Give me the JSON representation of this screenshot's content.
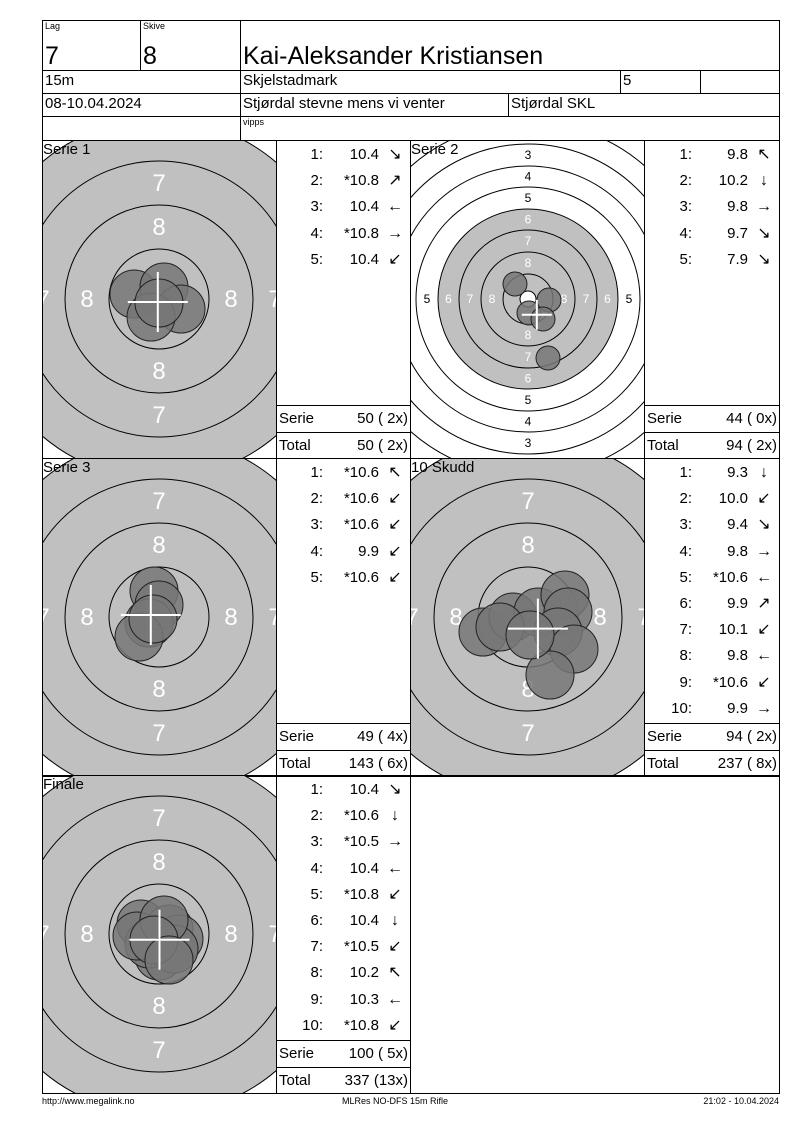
{
  "header": {
    "lag_label": "Lag",
    "lag": "7",
    "skive_label": "Skive",
    "skive": "8",
    "name": "Kai-Aleksander Kristiansen",
    "distance": "15m",
    "club_short": "Skjelstadmark",
    "class": "5",
    "extra": "",
    "date": "08-10.04.2024",
    "event": "Stjørdal stevne mens vi venter",
    "organizer": "Stjørdal SKL",
    "note": "vipps"
  },
  "panels": [
    {
      "title": "Serie 1",
      "zoom": "full",
      "serie": "50 ( 2x)",
      "total": "50 ( 2x)",
      "shots": [
        {
          "n": "1:",
          "v": "10.4",
          "dir": "se"
        },
        {
          "n": "2:",
          "v": "*10.8",
          "dir": "ne"
        },
        {
          "n": "3:",
          "v": "10.4",
          "dir": "w"
        },
        {
          "n": "4:",
          "v": "*10.8",
          "dir": "e"
        },
        {
          "n": "5:",
          "v": "10.4",
          "dir": "sw"
        }
      ]
    },
    {
      "title": "Serie 2",
      "zoom": "wide",
      "serie": "44 ( 0x)",
      "total": "94 ( 2x)",
      "shots": [
        {
          "n": "1:",
          "v": "9.8",
          "dir": "nw"
        },
        {
          "n": "2:",
          "v": "10.2",
          "dir": "s"
        },
        {
          "n": "3:",
          "v": "9.8",
          "dir": "e"
        },
        {
          "n": "4:",
          "v": "9.7",
          "dir": "se"
        },
        {
          "n": "5:",
          "v": "7.9",
          "dir": "se"
        }
      ]
    },
    {
      "title": "Serie 3",
      "zoom": "full",
      "serie": "49 ( 4x)",
      "total": "143 ( 6x)",
      "shots": [
        {
          "n": "1:",
          "v": "*10.6",
          "dir": "nw"
        },
        {
          "n": "2:",
          "v": "*10.6",
          "dir": "sw"
        },
        {
          "n": "3:",
          "v": "*10.6",
          "dir": "sw"
        },
        {
          "n": "4:",
          "v": "9.9",
          "dir": "sw"
        },
        {
          "n": "5:",
          "v": "*10.6",
          "dir": "sw"
        }
      ]
    },
    {
      "title": "10 Skudd",
      "zoom": "full",
      "serie": "94 ( 2x)",
      "total": "237 ( 8x)",
      "shots": [
        {
          "n": "1:",
          "v": "9.3",
          "dir": "s"
        },
        {
          "n": "2:",
          "v": "10.0",
          "dir": "sw"
        },
        {
          "n": "3:",
          "v": "9.4",
          "dir": "se"
        },
        {
          "n": "4:",
          "v": "9.8",
          "dir": "e"
        },
        {
          "n": "5:",
          "v": "*10.6",
          "dir": "w"
        },
        {
          "n": "6:",
          "v": "9.9",
          "dir": "ne"
        },
        {
          "n": "7:",
          "v": "10.1",
          "dir": "sw"
        },
        {
          "n": "8:",
          "v": "9.8",
          "dir": "w"
        },
        {
          "n": "9:",
          "v": "*10.6",
          "dir": "sw"
        },
        {
          "n": "10:",
          "v": "9.9",
          "dir": "e"
        }
      ]
    },
    {
      "title": "Finale",
      "zoom": "full",
      "serie": "100 ( 5x)",
      "total": "337 (13x)",
      "shots": [
        {
          "n": "1:",
          "v": "10.4",
          "dir": "se"
        },
        {
          "n": "2:",
          "v": "*10.6",
          "dir": "s"
        },
        {
          "n": "3:",
          "v": "*10.5",
          "dir": "e"
        },
        {
          "n": "4:",
          "v": "10.4",
          "dir": "w"
        },
        {
          "n": "5:",
          "v": "*10.8",
          "dir": "sw"
        },
        {
          "n": "6:",
          "v": "10.4",
          "dir": "s"
        },
        {
          "n": "7:",
          "v": "*10.5",
          "dir": "sw"
        },
        {
          "n": "8:",
          "v": "10.2",
          "dir": "nw"
        },
        {
          "n": "9:",
          "v": "10.3",
          "dir": "w"
        },
        {
          "n": "10:",
          "v": "*10.8",
          "dir": "sw"
        }
      ]
    }
  ],
  "labels": {
    "serie": "Serie",
    "total": "Total"
  },
  "footer": {
    "left": "http://www.megalink.no",
    "center": "MLRes NO-DFS 15m Rifle",
    "right": "21:02 - 10.04.2024"
  },
  "colors": {
    "target_gray": "#c0c0c0",
    "shot": "#777777"
  }
}
